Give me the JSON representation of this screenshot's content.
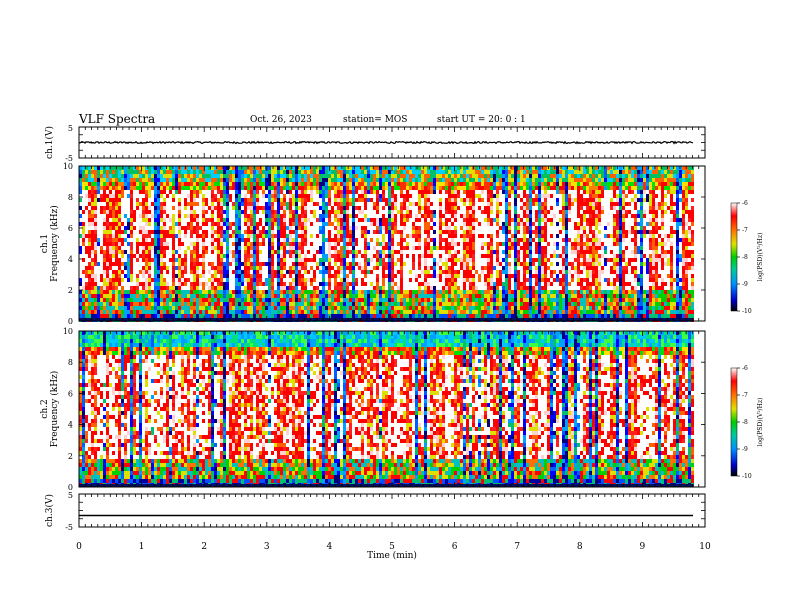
{
  "header": {
    "title": "VLF Spectra",
    "date": "Oct. 26, 2023",
    "station": "station= MOS",
    "start": "start  UT =   20: 0  : 1"
  },
  "chart_data": [
    {
      "type": "line",
      "panel": "ch1-voltage",
      "ylabel": "ch.1(V)",
      "ylim": [
        -5,
        5
      ],
      "yticks": [
        "5",
        "-5"
      ],
      "xlim": [
        0,
        10
      ],
      "series": [
        {
          "x_range": [
            0,
            9.82
          ],
          "mean_value": 0.0,
          "approx_noise_amplitude": 0.3
        }
      ]
    },
    {
      "type": "heatmap",
      "panel": "ch1-spectrogram",
      "ylabel": "ch.1\nFrequency (kHz)",
      "ylim": [
        0,
        10
      ],
      "yticks": [
        "0",
        "2",
        "4",
        "6",
        "8",
        "10"
      ],
      "xlim": [
        0,
        10
      ],
      "data_extent_min": 9.82,
      "colorbar": {
        "label": "log(PSD)(V²/Hz)",
        "range": [
          -10,
          -6
        ],
        "ticks": [
          "-6",
          "-7",
          "-8",
          "-9",
          "-10"
        ]
      }
    },
    {
      "type": "heatmap",
      "panel": "ch2-spectrogram",
      "ylabel": "ch.2\nFrequency (kHz)",
      "ylim": [
        0,
        10
      ],
      "yticks": [
        "0",
        "2",
        "4",
        "6",
        "8",
        "10"
      ],
      "xlim": [
        0,
        10
      ],
      "data_extent_min": 9.82,
      "colorbar": {
        "label": "log(PSD)(V²/Hz)",
        "range": [
          -10,
          -6
        ],
        "ticks": [
          "-6",
          "-7",
          "-8",
          "-9",
          "-10"
        ]
      }
    },
    {
      "type": "line",
      "panel": "ch3-voltage",
      "ylabel": "ch.3(V)",
      "ylim": [
        -5,
        5
      ],
      "yticks": [
        "5",
        "-5"
      ],
      "xlim": [
        0,
        10
      ],
      "xlabel": "Time (min)",
      "xticks": [
        "0",
        "1",
        "2",
        "3",
        "4",
        "5",
        "6",
        "7",
        "8",
        "9",
        "10"
      ],
      "series": [
        {
          "x_range": [
            0,
            9.82
          ],
          "mean_value": -1.5
        }
      ]
    }
  ]
}
